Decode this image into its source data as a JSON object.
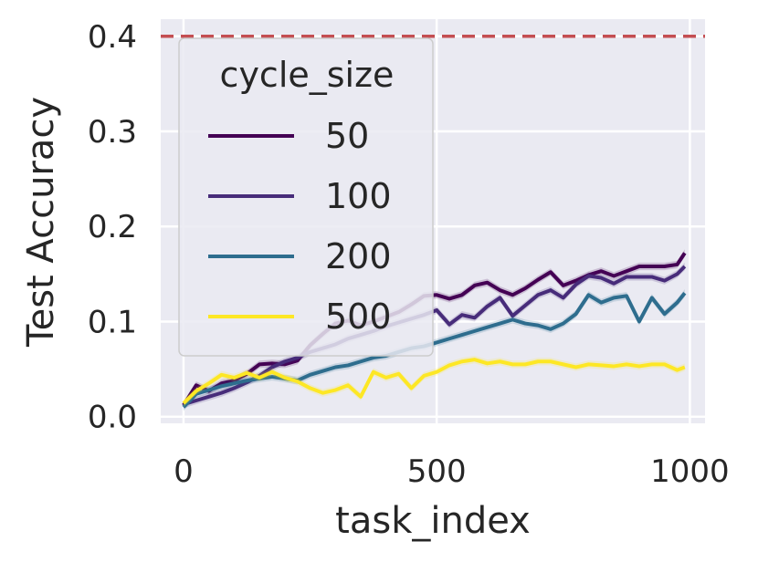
{
  "chart_data": {
    "type": "line",
    "title": "",
    "xlabel": "task_index",
    "ylabel": "Test Accuracy",
    "xlim": [
      -45,
      1030
    ],
    "ylim": [
      -0.007,
      0.418
    ],
    "xticks": [
      0,
      500,
      1000
    ],
    "xtick_labels": [
      "0",
      "500",
      "1000"
    ],
    "yticks": [
      0.0,
      0.1,
      0.2,
      0.3,
      0.4
    ],
    "ytick_labels": [
      "0.0",
      "0.1",
      "0.2",
      "0.3",
      "0.4"
    ],
    "grid": true,
    "background": "#eaeaf2",
    "reference_line": {
      "y": 0.4,
      "color": "#c44e52",
      "style": "dashed"
    },
    "legend": {
      "title": "cycle_size",
      "placement": "upper-left"
    },
    "series": [
      {
        "name": "50",
        "color": "#440154",
        "x": [
          0,
          25,
          50,
          75,
          100,
          125,
          150,
          175,
          200,
          225,
          250,
          275,
          300,
          325,
          350,
          375,
          400,
          425,
          450,
          475,
          500,
          525,
          550,
          575,
          600,
          625,
          650,
          675,
          700,
          725,
          750,
          775,
          800,
          825,
          850,
          875,
          900,
          925,
          950,
          975,
          990
        ],
        "y": [
          0.012,
          0.033,
          0.027,
          0.035,
          0.038,
          0.045,
          0.055,
          0.056,
          0.055,
          0.059,
          0.075,
          0.087,
          0.098,
          0.101,
          0.096,
          0.1,
          0.105,
          0.11,
          0.118,
          0.127,
          0.128,
          0.124,
          0.128,
          0.138,
          0.141,
          0.133,
          0.128,
          0.135,
          0.144,
          0.152,
          0.138,
          0.143,
          0.149,
          0.153,
          0.148,
          0.153,
          0.158,
          0.158,
          0.158,
          0.16,
          0.172
        ]
      },
      {
        "name": "100",
        "color": "#472c7a",
        "x": [
          0,
          25,
          50,
          75,
          100,
          125,
          150,
          175,
          200,
          225,
          250,
          275,
          300,
          325,
          350,
          375,
          400,
          425,
          450,
          475,
          500,
          525,
          550,
          575,
          600,
          625,
          650,
          675,
          700,
          725,
          750,
          775,
          800,
          825,
          850,
          875,
          900,
          925,
          950,
          975,
          990
        ],
        "y": [
          0.013,
          0.017,
          0.021,
          0.025,
          0.03,
          0.036,
          0.043,
          0.052,
          0.058,
          0.062,
          0.068,
          0.072,
          0.076,
          0.082,
          0.086,
          0.09,
          0.095,
          0.099,
          0.103,
          0.107,
          0.112,
          0.097,
          0.107,
          0.104,
          0.116,
          0.125,
          0.106,
          0.117,
          0.128,
          0.133,
          0.125,
          0.139,
          0.148,
          0.146,
          0.14,
          0.147,
          0.147,
          0.147,
          0.143,
          0.15,
          0.158
        ]
      },
      {
        "name": "200",
        "color": "#2e6d8e",
        "x": [
          0,
          25,
          50,
          75,
          100,
          125,
          150,
          175,
          200,
          225,
          250,
          275,
          300,
          325,
          350,
          375,
          400,
          425,
          450,
          475,
          500,
          525,
          550,
          575,
          600,
          625,
          650,
          675,
          700,
          725,
          750,
          775,
          800,
          825,
          850,
          875,
          900,
          925,
          950,
          975,
          990
        ],
        "y": [
          0.01,
          0.024,
          0.028,
          0.032,
          0.035,
          0.038,
          0.04,
          0.042,
          0.04,
          0.038,
          0.044,
          0.048,
          0.052,
          0.054,
          0.058,
          0.062,
          0.064,
          0.068,
          0.072,
          0.074,
          0.078,
          0.082,
          0.086,
          0.09,
          0.094,
          0.098,
          0.102,
          0.098,
          0.096,
          0.092,
          0.098,
          0.108,
          0.128,
          0.12,
          0.125,
          0.127,
          0.1,
          0.125,
          0.108,
          0.12,
          0.13
        ]
      },
      {
        "name": "500",
        "color": "#fde725",
        "x": [
          0,
          25,
          50,
          75,
          100,
          125,
          150,
          175,
          200,
          225,
          250,
          275,
          300,
          325,
          350,
          375,
          400,
          425,
          450,
          475,
          500,
          525,
          550,
          575,
          600,
          625,
          650,
          675,
          700,
          725,
          750,
          775,
          800,
          825,
          850,
          875,
          900,
          925,
          950,
          975,
          990
        ],
        "y": [
          0.014,
          0.027,
          0.035,
          0.044,
          0.041,
          0.046,
          0.041,
          0.047,
          0.041,
          0.037,
          0.03,
          0.025,
          0.028,
          0.033,
          0.021,
          0.047,
          0.041,
          0.045,
          0.03,
          0.043,
          0.047,
          0.054,
          0.058,
          0.06,
          0.056,
          0.058,
          0.055,
          0.055,
          0.058,
          0.058,
          0.055,
          0.052,
          0.055,
          0.054,
          0.053,
          0.055,
          0.053,
          0.055,
          0.055,
          0.049,
          0.052
        ]
      }
    ]
  }
}
